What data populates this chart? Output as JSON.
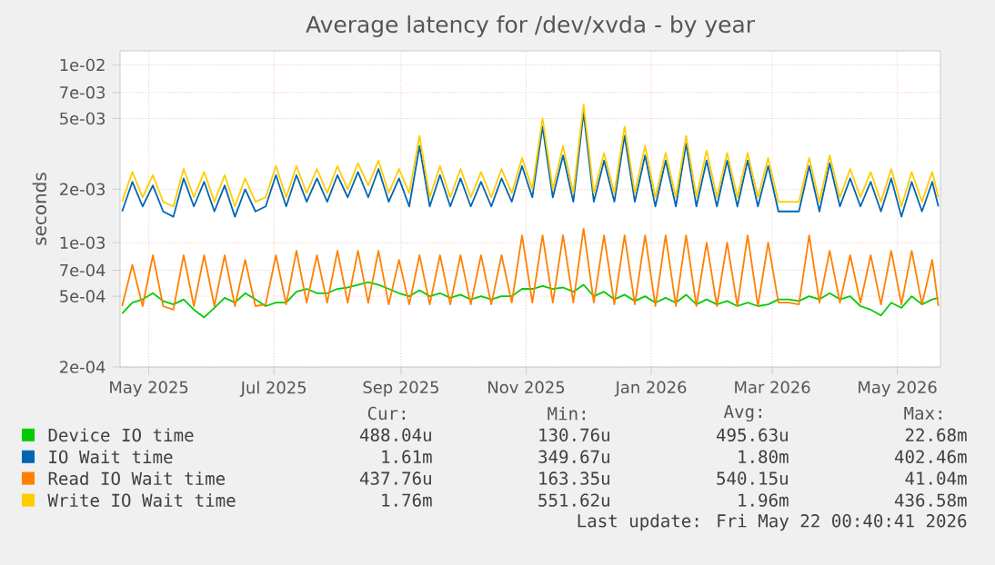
{
  "chart_data": {
    "type": "line",
    "title": "Average latency for /dev/xvda - by year",
    "ylabel": "seconds",
    "log": "y",
    "grid": true,
    "legend": "bottom",
    "marker": "none",
    "line_style": "solid",
    "xlim": [
      "2025-04-17",
      "2026-05-22"
    ],
    "xticks": [
      {
        "value": "2025-05-01",
        "label": "May 2025"
      },
      {
        "value": "2025-07-01",
        "label": "Jul 2025"
      },
      {
        "value": "2025-09-01",
        "label": "Sep 2025"
      },
      {
        "value": "2025-11-01",
        "label": "Nov 2025"
      },
      {
        "value": "2026-01-01",
        "label": "Jan 2026"
      },
      {
        "value": "2026-03-01",
        "label": "Mar 2026"
      },
      {
        "value": "2026-05-01",
        "label": "May 2026"
      }
    ],
    "ylim": [
      0.0002,
      0.012
    ],
    "yticks": [
      {
        "value": 0.0002,
        "label": "2e-04"
      },
      {
        "value": 0.0005,
        "label": "5e-04"
      },
      {
        "value": 0.0007,
        "label": "7e-04"
      },
      {
        "value": 0.001,
        "label": "1e-03"
      },
      {
        "value": 0.002,
        "label": "2e-03"
      },
      {
        "value": 0.005,
        "label": "5e-03"
      },
      {
        "value": 0.007,
        "label": "7e-03"
      },
      {
        "value": 0.01,
        "label": "1e-02"
      }
    ],
    "x": [
      "2025-04-18",
      "2025-04-23",
      "2025-04-28",
      "2025-05-03",
      "2025-05-08",
      "2025-05-13",
      "2025-05-18",
      "2025-05-23",
      "2025-05-28",
      "2025-06-02",
      "2025-06-07",
      "2025-06-12",
      "2025-06-17",
      "2025-06-22",
      "2025-06-27",
      "2025-07-02",
      "2025-07-07",
      "2025-07-12",
      "2025-07-17",
      "2025-07-22",
      "2025-07-27",
      "2025-08-01",
      "2025-08-06",
      "2025-08-11",
      "2025-08-16",
      "2025-08-21",
      "2025-08-26",
      "2025-08-31",
      "2025-09-05",
      "2025-09-10",
      "2025-09-15",
      "2025-09-20",
      "2025-09-25",
      "2025-09-30",
      "2025-10-05",
      "2025-10-10",
      "2025-10-15",
      "2025-10-20",
      "2025-10-25",
      "2025-10-30",
      "2025-11-04",
      "2025-11-09",
      "2025-11-14",
      "2025-11-19",
      "2025-11-24",
      "2025-11-29",
      "2025-12-04",
      "2025-12-09",
      "2025-12-14",
      "2025-12-19",
      "2025-12-24",
      "2025-12-29",
      "2026-01-03",
      "2026-01-08",
      "2026-01-13",
      "2026-01-18",
      "2026-01-23",
      "2026-01-28",
      "2026-02-02",
      "2026-02-07",
      "2026-02-12",
      "2026-02-17",
      "2026-02-22",
      "2026-02-27",
      "2026-03-04",
      "2026-03-09",
      "2026-03-14",
      "2026-03-19",
      "2026-03-24",
      "2026-03-29",
      "2026-04-03",
      "2026-04-08",
      "2026-04-13",
      "2026-04-18",
      "2026-04-23",
      "2026-04-28",
      "2026-05-03",
      "2026-05-08",
      "2026-05-13",
      "2026-05-18",
      "2026-05-21"
    ],
    "series": [
      {
        "name": "Device IO time",
        "color": "#00cc00",
        "values": [
          0.0004,
          0.00046,
          0.00048,
          0.00052,
          0.00047,
          0.00045,
          0.00048,
          0.00042,
          0.00038,
          0.00043,
          0.00049,
          0.00046,
          0.00052,
          0.00048,
          0.00044,
          0.00046,
          0.00046,
          0.00053,
          0.00055,
          0.00052,
          0.00052,
          0.00055,
          0.00056,
          0.00058,
          0.0006,
          0.00058,
          0.00055,
          0.00052,
          0.0005,
          0.00054,
          0.0005,
          0.00052,
          0.00049,
          0.00051,
          0.00048,
          0.0005,
          0.00048,
          0.0005,
          0.0005,
          0.00055,
          0.00055,
          0.00057,
          0.00055,
          0.00056,
          0.00053,
          0.00058,
          0.0005,
          0.00053,
          0.00048,
          0.00051,
          0.00047,
          0.0005,
          0.00046,
          0.00049,
          0.00046,
          0.00051,
          0.00045,
          0.00048,
          0.00045,
          0.00047,
          0.00044,
          0.00046,
          0.00044,
          0.00045,
          0.00048,
          0.00048,
          0.00047,
          0.0005,
          0.00048,
          0.00052,
          0.00048,
          0.0005,
          0.00044,
          0.00042,
          0.00039,
          0.00046,
          0.00043,
          0.0005,
          0.00045,
          0.00048,
          0.00049
        ]
      },
      {
        "name": "IO Wait time",
        "color": "#0066b3",
        "values": [
          0.0015,
          0.0022,
          0.0016,
          0.0021,
          0.0015,
          0.0014,
          0.0023,
          0.0016,
          0.0022,
          0.0015,
          0.0021,
          0.0014,
          0.002,
          0.0015,
          0.0016,
          0.0024,
          0.0016,
          0.0024,
          0.0017,
          0.0023,
          0.0017,
          0.0024,
          0.0018,
          0.0025,
          0.0018,
          0.0026,
          0.0017,
          0.0023,
          0.0016,
          0.0035,
          0.0016,
          0.0024,
          0.0016,
          0.0023,
          0.0016,
          0.0022,
          0.0016,
          0.0023,
          0.0017,
          0.0027,
          0.0018,
          0.0045,
          0.0018,
          0.0031,
          0.0017,
          0.0054,
          0.0017,
          0.0029,
          0.0017,
          0.004,
          0.0017,
          0.0031,
          0.0016,
          0.0029,
          0.0016,
          0.0036,
          0.0016,
          0.0029,
          0.0016,
          0.0029,
          0.0016,
          0.0029,
          0.0016,
          0.0027,
          0.0015,
          0.0015,
          0.0015,
          0.0027,
          0.0015,
          0.0028,
          0.0016,
          0.0023,
          0.0016,
          0.0022,
          0.0015,
          0.0023,
          0.0014,
          0.0022,
          0.0015,
          0.0022,
          0.0016
        ]
      },
      {
        "name": "Read IO Wait time",
        "color": "#ff8000",
        "values": [
          0.00044,
          0.00075,
          0.00044,
          0.00085,
          0.00044,
          0.00042,
          0.00085,
          0.00044,
          0.00085,
          0.00044,
          0.00085,
          0.00044,
          0.0008,
          0.00044,
          0.00045,
          0.00085,
          0.00045,
          0.0009,
          0.00046,
          0.00085,
          0.00046,
          0.0009,
          0.00046,
          0.0009,
          0.00046,
          0.0009,
          0.00045,
          0.0008,
          0.00045,
          0.00085,
          0.00045,
          0.00085,
          0.00045,
          0.00085,
          0.00045,
          0.00085,
          0.00045,
          0.00085,
          0.00046,
          0.0011,
          0.00046,
          0.0011,
          0.00046,
          0.0011,
          0.00046,
          0.0012,
          0.00046,
          0.0011,
          0.00045,
          0.0011,
          0.00045,
          0.0011,
          0.00044,
          0.0011,
          0.00044,
          0.0011,
          0.00044,
          0.001,
          0.00044,
          0.001,
          0.00044,
          0.0011,
          0.00044,
          0.001,
          0.00046,
          0.00046,
          0.00045,
          0.0011,
          0.00046,
          0.0009,
          0.00046,
          0.00085,
          0.00046,
          0.00085,
          0.00045,
          0.0009,
          0.00045,
          0.0009,
          0.00045,
          0.0008,
          0.00044
        ]
      },
      {
        "name": "Write IO Wait time",
        "color": "#ffcc00",
        "values": [
          0.0017,
          0.0025,
          0.0018,
          0.0024,
          0.0017,
          0.0016,
          0.0026,
          0.0018,
          0.0025,
          0.0017,
          0.0024,
          0.0016,
          0.0023,
          0.0017,
          0.0018,
          0.0027,
          0.0018,
          0.0027,
          0.0019,
          0.0026,
          0.0019,
          0.0027,
          0.002,
          0.0028,
          0.0021,
          0.0029,
          0.0019,
          0.0026,
          0.0019,
          0.004,
          0.0018,
          0.0027,
          0.0018,
          0.0026,
          0.0018,
          0.0025,
          0.0018,
          0.0026,
          0.0019,
          0.003,
          0.002,
          0.005,
          0.002,
          0.0035,
          0.0019,
          0.006,
          0.0019,
          0.0032,
          0.0019,
          0.0045,
          0.0019,
          0.0035,
          0.0018,
          0.0032,
          0.0018,
          0.004,
          0.0018,
          0.0033,
          0.0018,
          0.0032,
          0.0018,
          0.0032,
          0.0018,
          0.003,
          0.0017,
          0.0017,
          0.0017,
          0.003,
          0.0017,
          0.0031,
          0.0018,
          0.0026,
          0.0018,
          0.0025,
          0.0017,
          0.0026,
          0.0016,
          0.0025,
          0.0017,
          0.0025,
          0.0018
        ]
      }
    ],
    "annotations": [
      "Cur:",
      "Min:",
      "Avg:",
      "Max:",
      "488.04u",
      "130.76u",
      "495.63u",
      "22.68m",
      "1.61m",
      "349.67u",
      "1.80m",
      "402.46m",
      "437.76u",
      "163.35u",
      "540.15u",
      "41.04m",
      "1.76m",
      "551.62u",
      "1.96m",
      "436.58m",
      "Last update: Fri May 22 00:40:41 2026"
    ]
  }
}
